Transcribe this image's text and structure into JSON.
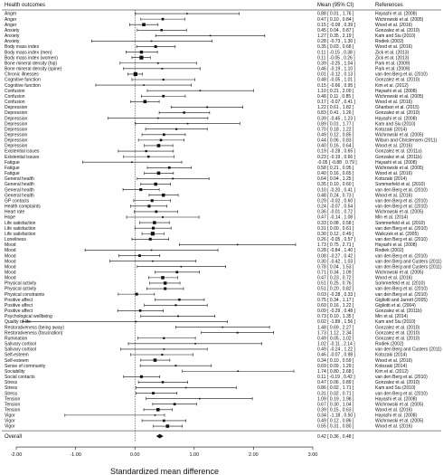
{
  "chart_data": {
    "type": "forest",
    "columns": {
      "label": "Health outcomes",
      "estimate": "Mean (95% CI)",
      "reference": "References"
    },
    "xlabel": "Standardized mean difference",
    "xlim": [
      -2.0,
      3.0
    ],
    "xticks": [
      -2.0,
      -1.0,
      0.0,
      1.0,
      2.0,
      3.0
    ],
    "xtick_labels": [
      "-2.00",
      "-1.00",
      "0.00",
      "1.00",
      "2.00",
      "3.00"
    ],
    "reference_line": 0,
    "rows": [
      {
        "label": "Anger",
        "mean": 0.88,
        "lo": 0.01,
        "hi": 1.76,
        "ci": "0.88 [ 0.01 , 1.76 ]",
        "ref": "Hayashi et al. (2008)"
      },
      {
        "label": "Anger",
        "mean": 0.47,
        "lo": 0.1,
        "hi": 0.84,
        "ci": "0.47 [ 0.10 , 0.84 ]",
        "ref": "Wichrowski et al. (2005)"
      },
      {
        "label": "Anger",
        "mean": 0.15,
        "lo": -0.09,
        "hi": 0.39,
        "ci": "0.15 [ -0.09 , 0.39 ]",
        "ref": "Wood et al. (2016)"
      },
      {
        "label": "Anxiety",
        "mean": 0.45,
        "lo": 0.04,
        "hi": 0.87,
        "ci": "0.45 [ 0.04 , 0.87 ]",
        "ref": "Gonzalez et al. (2010)"
      },
      {
        "label": "Anxiety",
        "mean": 1.27,
        "lo": 0.35,
        "hi": 2.19,
        "ci": "1.27 [ 0.35 , 2.19 ]",
        "ref": "Kam and Siu (2010)"
      },
      {
        "label": "Anxiety",
        "mean": 0.28,
        "lo": -0.73,
        "hi": 1.3,
        "ci": "0.28 [ -0.73 , 1.30 ]",
        "ref": "Rodiek (2002)"
      },
      {
        "label": "Body mass index",
        "mean": 0.35,
        "lo": 0.03,
        "hi": 0.68,
        "ci": "0.35 [ 0.03 , 0.68 ]",
        "ref": "Wood et al. (2016)"
      },
      {
        "label": "Body mass index (men)",
        "mean": 0.11,
        "lo": -0.15,
        "hi": 0.38,
        "ci": "0.11 [ -0.15 , 0.38 ]",
        "ref": "Zick et al. (2013)"
      },
      {
        "label": "Body mass index (women)",
        "mean": 0.11,
        "lo": -0.05,
        "hi": 0.26,
        "ci": "0.11 [ -0.05 , 0.26 ]",
        "ref": "Zick et al. (2013)"
      },
      {
        "label": "Bone mineral density (hip)",
        "mean": 0.39,
        "lo": -0.25,
        "hi": 1.04,
        "ci": "0.39 [ -0.25 , 1.04 ]",
        "ref": "Park et al. (2009)"
      },
      {
        "label": "Bone mineral density (spine)",
        "mean": 0.46,
        "lo": -0.19,
        "hi": 1.1,
        "ci": "0.46 [ -0.19 , 1.10 ]",
        "ref": "Park et al. (2009)"
      },
      {
        "label": "Chronic illnesses",
        "mean": 0.01,
        "lo": -0.12,
        "hi": 0.13,
        "ci": "0.01 [ -0.12 , 0.13 ]",
        "ref": "van den Berg et al. (2010)"
      },
      {
        "label": "Cognitive function",
        "mean": 0.48,
        "lo": -0.05,
        "hi": 1.01,
        "ci": "0.48 [ -0.05 , 1.01 ]",
        "ref": "Gonzalez et al. (2010)"
      },
      {
        "label": "Cognitive function",
        "mean": 0.15,
        "lo": -0.66,
        "hi": 0.95,
        "ci": "0.15 [ -0.66 , 0.95 ]",
        "ref": "Kim et al. (2012)"
      },
      {
        "label": "Confusion",
        "mean": 1.1,
        "lo": 0.21,
        "hi": 2.0,
        "ci": "1.10 [ 0.21 , 2.00 ]",
        "ref": "Hayashi et al. (2008)"
      },
      {
        "label": "Confusion",
        "mean": 0.48,
        "lo": 0.11,
        "hi": 0.85,
        "ci": "0.48 [ 0.11 , 0.85 ]",
        "ref": "Wichrowski et al. (2005)"
      },
      {
        "label": "Confusion",
        "mean": 0.17,
        "lo": -0.07,
        "hi": 0.41,
        "ci": "0.17 [ -0.07 , 0.41 ]",
        "ref": "Wood et al. (2016)"
      },
      {
        "label": "Depression",
        "mean": 1.22,
        "lo": 0.61,
        "hi": 1.82,
        "ci": "1.22 [ 0.61 , 1.82 ]",
        "ref": "Ghanbari et al. (2015)"
      },
      {
        "label": "Depression",
        "mean": 0.83,
        "lo": 0.41,
        "hi": 1.26,
        "ci": "0.83 [ 0.41 , 1.26 ]",
        "ref": "Gonzalez et al. (2010)"
      },
      {
        "label": "Depression",
        "mean": 0.39,
        "lo": -0.45,
        "hi": 1.23,
        "ci": "0.39 [ -0.45 , 1.23 ]",
        "ref": "Hayashi et al. (2008)"
      },
      {
        "label": "Depression",
        "mean": 0.89,
        "lo": 0.01,
        "hi": 1.77,
        "ci": "0.89 [ 0.01 , 1.77 ]",
        "ref": "Kam and Siu (2010)"
      },
      {
        "label": "Depression",
        "mean": 0.7,
        "lo": 0.18,
        "hi": 1.22,
        "ci": "0.70 [ 0.18 , 1.22 ]",
        "ref": "Kotozaki (2014)"
      },
      {
        "label": "Depression",
        "mean": 0.49,
        "lo": 0.12,
        "hi": 0.85,
        "ci": "0.49 [ 0.12 , 0.85 ]",
        "ref": "Wichrowski et al. (2005)"
      },
      {
        "label": "Depression",
        "mean": 0.44,
        "lo": 0.06,
        "hi": 0.83,
        "ci": "0.44 [ 0.06 , 0.83 ]",
        "ref": "Wilson and Christensen (2011)"
      },
      {
        "label": "Depression",
        "mean": 0.4,
        "lo": 0.16,
        "hi": 0.64,
        "ci": "0.40 [ 0.16 , 0.64 ]",
        "ref": "Wood et al. (2016)"
      },
      {
        "label": "Existential issues",
        "mean": 0.19,
        "lo": -0.28,
        "hi": 0.65,
        "ci": "0.19 [ -0.28 , 0.65 ]",
        "ref": "Gonzalez et al. (2011a)"
      },
      {
        "label": "Existential issues",
        "mean": 0.23,
        "lo": -0.19,
        "hi": 0.66,
        "ci": "0.23 [ -0.19 , 0.66 ]",
        "ref": "Gonzalez et al. (2011b)"
      },
      {
        "label": "Fatigue",
        "mean": -0.05,
        "lo": -0.88,
        "hi": 0.79,
        "ci": "-0.05 [ -0.88 , 0.79 ]",
        "ref": "Hayashi et al. (2008)"
      },
      {
        "label": "Fatigue",
        "mean": 0.58,
        "lo": 0.21,
        "hi": 0.95,
        "ci": "0.58 [ 0.21 , 0.95 ]",
        "ref": "Wichrowski et al. (2005)"
      },
      {
        "label": "Fatigue",
        "mean": 0.4,
        "lo": 0.16,
        "hi": 0.65,
        "ci": "0.40 [ 0.16 , 0.65 ]",
        "ref": "Wood et al. (2016)"
      },
      {
        "label": "General health",
        "mean": 0.64,
        "lo": 0.04,
        "hi": 1.25,
        "ci": "0.64 [ 0.04 , 1.25 ]",
        "ref": "Kotozaki (2014)"
      },
      {
        "label": "General health",
        "mean": 0.35,
        "lo": 0.1,
        "hi": 0.6,
        "ci": "0.35 [ 0.10 , 0.60 ]",
        "ref": "Sommerfeld et al. (2010)"
      },
      {
        "label": "General health",
        "mean": 0.1,
        "lo": -0.2,
        "hi": 0.41,
        "ci": "0.10 [ -0.20 , 0.41 ]",
        "ref": "van den Berg et al. (2010)"
      },
      {
        "label": "General health",
        "mean": 0.48,
        "lo": 0.24,
        "hi": 0.73,
        "ci": "0.48 [ 0.24 , 0.73 ]",
        "ref": "Wood et al. (2016)"
      },
      {
        "label": "GP contacts",
        "mean": 0.29,
        "lo": -0.02,
        "hi": 0.6,
        "ci": "0.29 [ -0.02 , 0.60 ]",
        "ref": "van den Berg et al. (2010)"
      },
      {
        "label": "Health complaints",
        "mean": 0.24,
        "lo": -0.07,
        "hi": 0.54,
        "ci": "0.24 [ -0.07 , 0.54 ]",
        "ref": "van den Berg et al. (2010)"
      },
      {
        "label": "Heart rate",
        "mean": 0.36,
        "lo": -0.01,
        "hi": 0.72,
        "ci": "0.36 [ -0.01 , 0.72 ]",
        "ref": "Wichrowski et al. (2005)"
      },
      {
        "label": "Hope",
        "mean": 0.47,
        "lo": -0.14,
        "hi": 1.08,
        "ci": "0.47 [ -0.14 , 1.08 ]",
        "ref": "Min et al. (2014)"
      },
      {
        "label": "Life satisfaction",
        "mean": 0.33,
        "lo": 0.08,
        "hi": 0.58,
        "ci": "0.33 [ 0.08 , 0.58 ]",
        "ref": "Sommerfeld et al. (2010)"
      },
      {
        "label": "Life satisfaction",
        "mean": 0.31,
        "lo": 0.0,
        "hi": 0.61,
        "ci": "0.31 [ 0.00 , 0.61 ]",
        "ref": "van den Berg et al. (2010)"
      },
      {
        "label": "Life satisfaction",
        "mean": 0.3,
        "lo": 0.12,
        "hi": 0.49,
        "ci": "0.30 [ 0.12 , 0.49 ]",
        "ref": "Waliczek et al. (2005)"
      },
      {
        "label": "Loneliness",
        "mean": 0.26,
        "lo": -0.05,
        "hi": 0.57,
        "ci": "0.26 [ -0.05 , 0.57 ]",
        "ref": "van den Berg et al. (2010)"
      },
      {
        "label": "Mood",
        "mean": 1.73,
        "lo": 0.75,
        "hi": 2.71,
        "ci": "1.73 [ 0.75 , 2.71 ]",
        "ref": "Hayashi et al. (2008)"
      },
      {
        "label": "Mood",
        "mean": 0.28,
        "lo": -0.84,
        "hi": 1.4,
        "ci": "0.28 [ -0.84 , 1.40 ]",
        "ref": "Rodiek (2002)"
      },
      {
        "label": "Mood",
        "mean": 0.08,
        "lo": -0.27,
        "hi": 0.42,
        "ci": "0.08 [ -0.27 , 0.42 ]",
        "ref": "van den Berg et al. (2010)"
      },
      {
        "label": "Mood",
        "mean": 0.3,
        "lo": -0.42,
        "hi": 1.03,
        "ci": "0.30 [ -0.42 , 1.03 ]",
        "ref": "van den Berg and Custers (2011)"
      },
      {
        "label": "Mood",
        "mean": 0.78,
        "lo": 0.04,
        "hi": 1.53,
        "ci": "0.78 [ 0.04 , 1.53 ]",
        "ref": "van den Berg and Custers (2011)"
      },
      {
        "label": "Mood",
        "mean": 0.71,
        "lo": 0.34,
        "hi": 1.09,
        "ci": "0.71 [ 0.34 , 1.09 ]",
        "ref": "Wichrowski et al. (2005)"
      },
      {
        "label": "Mood",
        "mean": 0.47,
        "lo": 0.23,
        "hi": 0.72,
        "ci": "0.47 [ 0.23 , 0.72 ]",
        "ref": "Wood et al. (2016)"
      },
      {
        "label": "Physical activity",
        "mean": 0.51,
        "lo": 0.25,
        "hi": 0.76,
        "ci": "0.51 [ 0.25 , 0.76 ]",
        "ref": "Sommerfeld et al. (2010)"
      },
      {
        "label": "Physical activity",
        "mean": 0.51,
        "lo": 0.2,
        "hi": 0.82,
        "ci": "0.51 [ 0.20 , 0.82 ]",
        "ref": "van den Berg et al. (2010)"
      },
      {
        "label": "Physical constraints",
        "mean": 0.03,
        "lo": -0.28,
        "hi": 0.33,
        "ci": "0.03 [ -0.28 , 0.33 ]",
        "ref": "van den Berg et al. (2010)"
      },
      {
        "label": "Positive affect",
        "mean": 0.75,
        "lo": 0.34,
        "hi": 1.17,
        "ci": "0.75 [ 0.34 , 1.17 ]",
        "ref": "Gigliotti and Jarrott (2005)"
      },
      {
        "label": "Positive affect",
        "mean": 0.69,
        "lo": 0.16,
        "hi": 1.22,
        "ci": "0.69 [ 0.16 , 1.22 ]",
        "ref": "Gigliotti et al. (2004)"
      },
      {
        "label": "Positive affect",
        "mean": 0.09,
        "lo": -0.29,
        "hi": 0.48,
        "ci": "0.09 [ -0.29 , 0.48 ]",
        "ref": "Gonzalez et al. (2011b)"
      },
      {
        "label": "Psychological wellbeing",
        "mean": 0.73,
        "lo": 0.1,
        "hi": 1.35,
        "ci": "0.73 [ 0.10 , 1.35 ]",
        "ref": "Min et al. (2014)"
      },
      {
        "label": "Quality of life",
        "mean": 0.02,
        "lo": -1.89,
        "hi": 1.56,
        "ci": "0.02 [ -1.89 , 1.56 ]",
        "ref": "Kam and Siu (2010)"
      },
      {
        "label": "Restorativeness (being away)",
        "mean": 1.48,
        "lo": 0.69,
        "hi": 2.27,
        "ci": "1.48 [ 0.69 , 2.27 ]",
        "ref": "Gonzalez et al. (2010)"
      },
      {
        "label": "Restorativeness (fascination)",
        "mean": 1.73,
        "lo": 1.12,
        "hi": 2.34,
        "ci": "1.73 [ 1.12 , 2.34 ]",
        "ref": "Gonzalez et al. (2010)"
      },
      {
        "label": "Rumination",
        "mean": 0.49,
        "lo": 0.05,
        "hi": 1.02,
        "ci": "0.49 [ 0.05 , 1.02 ]",
        "ref": "Gonzalez et al. (2010)"
      },
      {
        "label": "Salivary cortisol",
        "mean": 1.02,
        "lo": -0.11,
        "hi": 2.14,
        "ci": "1.02 [ -0.11 , 2.14 ]",
        "ref": "Rodiek (2002)"
      },
      {
        "label": "Salivary cortisol",
        "mean": 0.49,
        "lo": -0.24,
        "hi": 1.22,
        "ci": "0.49 [ -0.24 , 1.22 ]",
        "ref": "van den Berg and Custers (2011)"
      },
      {
        "label": "Self-esteem",
        "mean": 0.46,
        "lo": -0.07,
        "hi": 0.98,
        "ci": "0.46 [ -0.07 , 0.98 ]",
        "ref": "Kotozaki (2014)"
      },
      {
        "label": "Self-esteem",
        "mean": 0.34,
        "lo": 0.1,
        "hi": 0.59,
        "ci": "0.34 [ 0.10 , 0.59 ]",
        "ref": "Wood et al. (2016)"
      },
      {
        "label": "Sense of community",
        "mean": 0.69,
        "lo": 0.09,
        "hi": 1.29,
        "ci": "0.69 [ 0.09 , 1.29 ]",
        "ref": "Kotozaki (2014)"
      },
      {
        "label": "Sociability",
        "mean": 1.74,
        "lo": 0.8,
        "hi": 2.68,
        "ci": "1.74 [ 0.80 , 2.68 ]",
        "ref": "Kim et al. (2012)"
      },
      {
        "label": "Social contacts",
        "mean": 0.11,
        "lo": -0.19,
        "hi": 0.42,
        "ci": "0.11 [ -0.19 , 0.42 ]",
        "ref": "van den Berg et al. (2010)"
      },
      {
        "label": "Stress",
        "mean": 0.47,
        "lo": 0.06,
        "hi": 0.89,
        "ci": "0.47 [ 0.06 , 0.89 ]",
        "ref": "Gonzalez et al. (2010)"
      },
      {
        "label": "Stress",
        "mean": 0.86,
        "lo": 0.02,
        "hi": 1.71,
        "ci": "0.86 [ 0.02 , 1.71 ]",
        "ref": "Kam and Siu (2010)"
      },
      {
        "label": "Stress",
        "mean": 0.31,
        "lo": 0.02,
        "hi": 0.71,
        "ci": "0.31 [ 0.02 , 0.71 ]",
        "ref": "van den Berg et al. (2010)"
      },
      {
        "label": "Tension",
        "mean": 1.09,
        "lo": 0.19,
        "hi": 1.98,
        "ci": "1.09 [ 0.19 , 1.98 ]",
        "ref": "Hayashi et al. (2008)"
      },
      {
        "label": "Tension",
        "mean": 0.67,
        "lo": 0.3,
        "hi": 1.04,
        "ci": "0.67 [ 0.30 , 1.04 ]",
        "ref": "Wichrowski et al. (2005)"
      },
      {
        "label": "Tension",
        "mean": 0.39,
        "lo": 0.15,
        "hi": 0.63,
        "ci": "0.39 [ 0.15 , 0.63 ]",
        "ref": "Wood et al. (2016)"
      },
      {
        "label": "Vigor",
        "mean": 0.34,
        "lo": -1.18,
        "hi": 0.5,
        "ci": "0.34 [ -1.18 , 0.50 ]",
        "ref": "Hayashi et al. (2008)"
      },
      {
        "label": "Vigor",
        "mean": 0.49,
        "lo": 0.12,
        "hi": 0.86,
        "ci": "0.49 [ 0.12 , 0.86 ]",
        "ref": "Wichrowski et al. (2005)"
      },
      {
        "label": "Vigor",
        "mean": 0.55,
        "lo": 0.31,
        "hi": 0.8,
        "ci": "0.55 [ 0.31 , 0.80 ]",
        "ref": "Wood et al. (2016)"
      }
    ],
    "overall": {
      "label": "Overall",
      "mean": 0.42,
      "lo": 0.36,
      "hi": 0.48,
      "ci": "0.42 [ 0.36 , 0.48 ]"
    }
  }
}
